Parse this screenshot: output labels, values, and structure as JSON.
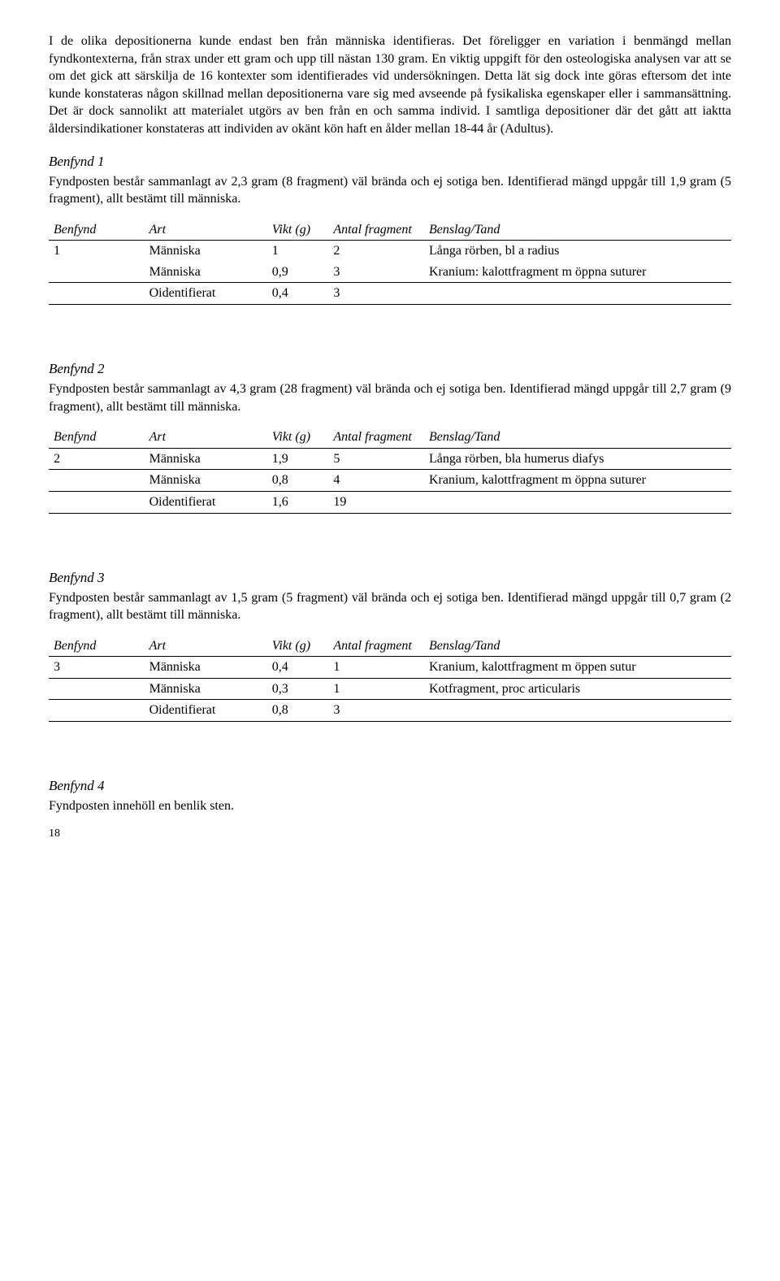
{
  "intro": "I de olika depositionerna kunde endast ben från människa identifieras. Det föreligger en variation i benmängd mellan fyndkontexterna, från strax under ett gram och upp till nästan 130 gram. En viktig uppgift för den osteologiska analysen var att se om det gick att särskilja de 16 kontexter som identifierades vid undersökningen. Detta lät sig dock inte göras eftersom det inte kunde konstateras någon skillnad mellan depositionerna vare sig med avseende på fysikaliska egenskaper eller i sammansättning. Det är dock sannolikt att materialet utgörs av ben från en och samma individ. I samtliga depositioner där det gått att iaktta åldersindikationer konstateras att individen av okänt kön haft en ålder mellan 18-44 år (Adultus).",
  "headers": {
    "benfynd": "Benfynd",
    "art": "Art",
    "vikt": "Vikt (g)",
    "antal": "Antal fragment",
    "benslag": "Benslag/Tand"
  },
  "sections": [
    {
      "title": "Benfynd 1",
      "desc": "Fyndposten består sammanlagt av 2,3 gram (8 fragment) väl brända och ej sotiga ben. Identifierad mängd uppgår till 1,9 gram (5 fragment), allt bestämt till människa.",
      "rows": [
        {
          "benfynd": "1",
          "art": "Människa",
          "vikt": "1",
          "antal": "2",
          "benslag": "Långa rörben, bl a radius",
          "rule": false
        },
        {
          "benfynd": "",
          "art": "Människa",
          "vikt": "0,9",
          "antal": "3",
          "benslag": "Kranium: kalottfragment m öppna suturer",
          "rule": true
        },
        {
          "benfynd": "",
          "art": "Oidentifierat",
          "vikt": "0,4",
          "antal": "3",
          "benslag": "",
          "rule": true
        }
      ]
    },
    {
      "title": "Benfynd 2",
      "desc": "Fyndposten består sammanlagt av 4,3 gram (28 fragment) väl brända och ej sotiga ben. Identifierad mängd uppgår till 2,7 gram (9 fragment), allt bestämt till människa.",
      "rows": [
        {
          "benfynd": "2",
          "art": "Människa",
          "vikt": "1,9",
          "antal": "5",
          "benslag": "Långa rörben, bla humerus diafys",
          "rule": true
        },
        {
          "benfynd": "",
          "art": "Människa",
          "vikt": "0,8",
          "antal": "4",
          "benslag": "Kranium, kalottfragment m öppna suturer",
          "rule": true
        },
        {
          "benfynd": "",
          "art": "Oidentifierat",
          "vikt": "1,6",
          "antal": "19",
          "benslag": "",
          "rule": true
        }
      ]
    },
    {
      "title": "Benfynd 3",
      "desc": "Fyndposten består sammanlagt av 1,5 gram (5 fragment) väl brända och ej sotiga ben. Identifierad mängd uppgår till 0,7 gram (2 fragment), allt bestämt till människa.",
      "rows": [
        {
          "benfynd": "3",
          "art": "Människa",
          "vikt": "0,4",
          "antal": "1",
          "benslag": "Kranium, kalottfragment m öppen sutur",
          "rule": true
        },
        {
          "benfynd": "",
          "art": "Människa",
          "vikt": "0,3",
          "antal": "1",
          "benslag": "Kotfragment, proc articularis",
          "rule": true
        },
        {
          "benfynd": "",
          "art": "Oidentifierat",
          "vikt": "0,8",
          "antal": "3",
          "benslag": "",
          "rule": true
        }
      ]
    },
    {
      "title": "Benfynd 4",
      "desc": "Fyndposten innehöll en benlik sten.",
      "rows": []
    }
  ],
  "page_number": "18"
}
